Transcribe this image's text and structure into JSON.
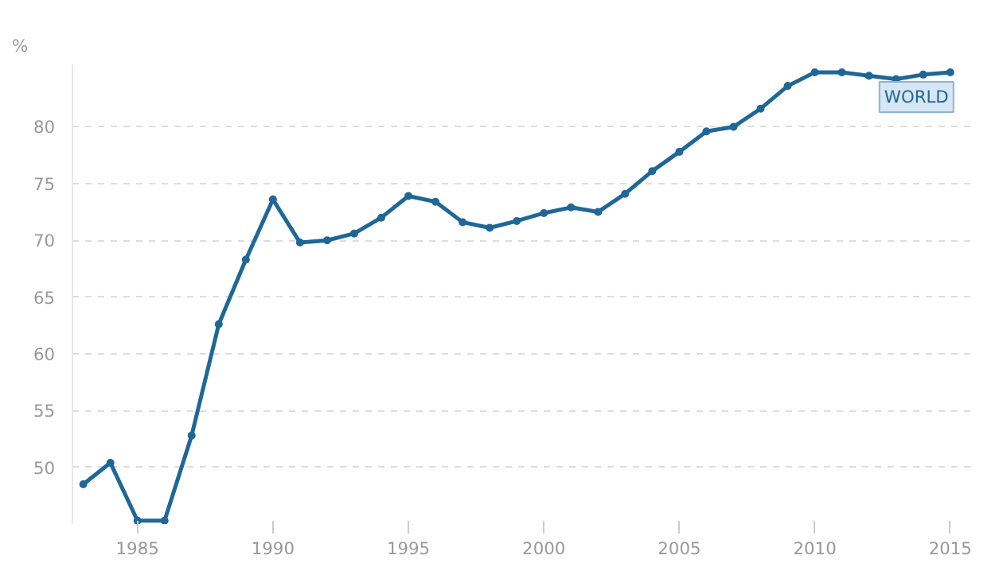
{
  "chart_data": {
    "type": "line",
    "ylabel": "%",
    "x": [
      1983,
      1984,
      1985,
      1986,
      1987,
      1988,
      1989,
      1990,
      1991,
      1992,
      1993,
      1994,
      1995,
      1996,
      1997,
      1998,
      1999,
      2000,
      2001,
      2002,
      2003,
      2004,
      2005,
      2006,
      2007,
      2008,
      2009,
      2010,
      2011,
      2012,
      2013,
      2014,
      2015
    ],
    "series": [
      {
        "name": "WORLD",
        "color": "#1f6796",
        "values": [
          48.5,
          50.4,
          45.3,
          45.3,
          52.8,
          62.6,
          68.3,
          73.6,
          69.8,
          70.0,
          70.6,
          72.0,
          73.9,
          73.4,
          71.6,
          71.1,
          71.7,
          72.4,
          72.9,
          72.5,
          74.1,
          76.1,
          77.8,
          79.6,
          80.0,
          81.6,
          83.6,
          84.8,
          84.8,
          84.5,
          84.2,
          84.6,
          84.8
        ]
      }
    ],
    "xlim": [
      1982.6,
      2015.8
    ],
    "ylim": [
      45,
      85.5
    ],
    "xticks": [
      1985,
      1990,
      1995,
      2000,
      2005,
      2010,
      2015
    ],
    "yticks": [
      50,
      55,
      60,
      65,
      70,
      75,
      80
    ],
    "grid": "y",
    "marker": "circle",
    "line_style": "solid"
  }
}
